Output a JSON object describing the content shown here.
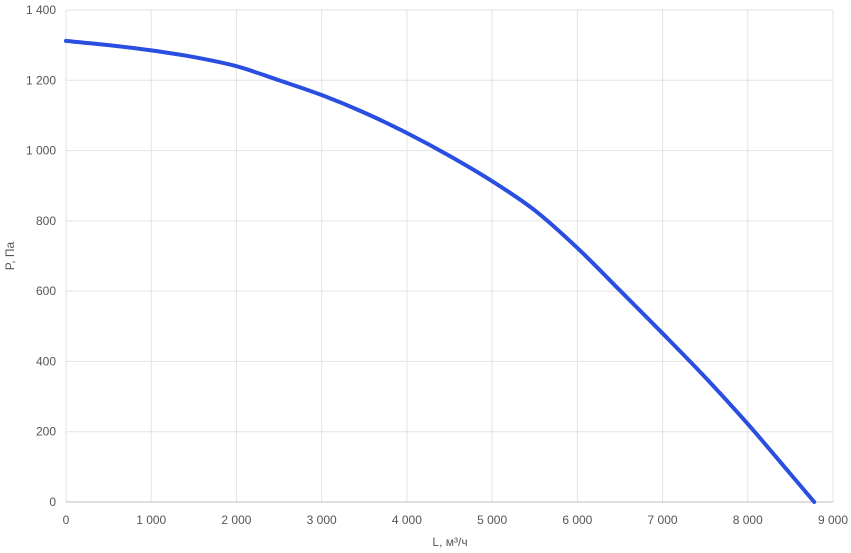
{
  "chart_data": {
    "type": "line",
    "xlabel": "L, м³/ч",
    "ylabel": "P, Па",
    "xlim": [
      0,
      9000
    ],
    "ylim": [
      0,
      1400
    ],
    "x_ticks": [
      {
        "value": 0,
        "label": "0"
      },
      {
        "value": 1000,
        "label": "1 000"
      },
      {
        "value": 2000,
        "label": "2 000"
      },
      {
        "value": 3000,
        "label": "3 000"
      },
      {
        "value": 4000,
        "label": "4 000"
      },
      {
        "value": 5000,
        "label": "5 000"
      },
      {
        "value": 6000,
        "label": "6 000"
      },
      {
        "value": 7000,
        "label": "7 000"
      },
      {
        "value": 8000,
        "label": "8 000"
      },
      {
        "value": 9000,
        "label": "9 000"
      }
    ],
    "y_ticks": [
      {
        "value": 0,
        "label": "0"
      },
      {
        "value": 200,
        "label": "200"
      },
      {
        "value": 400,
        "label": "400"
      },
      {
        "value": 600,
        "label": "600"
      },
      {
        "value": 800,
        "label": "800"
      },
      {
        "value": 1000,
        "label": "1 000"
      },
      {
        "value": 1200,
        "label": "1 200"
      },
      {
        "value": 1400,
        "label": "1 400"
      }
    ],
    "grid": true,
    "legend": "none",
    "series": [
      {
        "color": "#2a4fe0",
        "points": [
          [
            0,
            1312
          ],
          [
            500,
            1300
          ],
          [
            1000,
            1285
          ],
          [
            1500,
            1266
          ],
          [
            2000,
            1240
          ],
          [
            2500,
            1200
          ],
          [
            3000,
            1158
          ],
          [
            3500,
            1108
          ],
          [
            4000,
            1050
          ],
          [
            4500,
            985
          ],
          [
            5000,
            913
          ],
          [
            5500,
            830
          ],
          [
            6000,
            723
          ],
          [
            6500,
            602
          ],
          [
            7000,
            480
          ],
          [
            7500,
            355
          ],
          [
            8000,
            222
          ],
          [
            8500,
            80
          ],
          [
            8780,
            0
          ]
        ]
      }
    ]
  }
}
